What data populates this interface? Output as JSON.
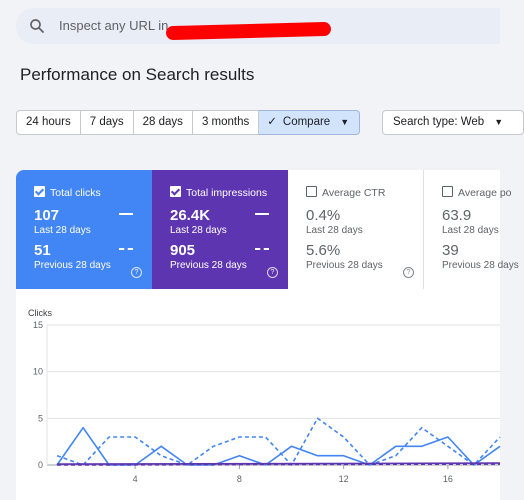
{
  "search": {
    "placeholder": "Inspect any URL in"
  },
  "page_title": "Performance on Search results",
  "date_ranges": [
    "24 hours",
    "7 days",
    "28 days",
    "3 months"
  ],
  "compare_label": "Compare",
  "search_type": "Search type: Web",
  "metrics": [
    {
      "label": "Total clicks",
      "current": "107",
      "current_period": "Last 28 days",
      "previous": "51",
      "previous_period": "Previous 28 days",
      "checked": true,
      "color": "#4285f4"
    },
    {
      "label": "Total impressions",
      "current": "26.4K",
      "current_period": "Last 28 days",
      "previous": "905",
      "previous_period": "Previous 28 days",
      "checked": true,
      "color": "#5e35b1"
    },
    {
      "label": "Average CTR",
      "current": "0.4%",
      "current_period": "Last 28 days",
      "previous": "5.6%",
      "previous_period": "Previous 28 days",
      "checked": false
    },
    {
      "label": "Average po",
      "current": "63.9",
      "current_period": "Last 28 days",
      "previous": "39",
      "previous_period": "Previous 28 days",
      "checked": false
    }
  ],
  "chart_data": {
    "type": "line",
    "ylabel": "Clicks",
    "y_ticks": [
      0,
      5,
      10,
      15
    ],
    "x_ticks": [
      4,
      8,
      12,
      16
    ],
    "ylim": [
      0,
      15
    ],
    "xlim": [
      1,
      18
    ],
    "series": [
      {
        "style": "solid",
        "color": "#4285f4",
        "x": [
          1,
          2,
          3,
          4,
          5,
          6,
          7,
          8,
          9,
          10,
          11,
          12,
          13,
          14,
          15,
          16,
          17,
          18
        ],
        "y": [
          0,
          4,
          0,
          0,
          2,
          0,
          0,
          1,
          0,
          2,
          1,
          1,
          0,
          2,
          2,
          3,
          0,
          2
        ]
      },
      {
        "style": "dashed",
        "color": "#4285f4",
        "x": [
          1,
          2,
          3,
          4,
          5,
          6,
          7,
          8,
          9,
          10,
          11,
          12,
          13,
          14,
          15,
          16,
          17,
          18
        ],
        "y": [
          1,
          0,
          3,
          3,
          1,
          0,
          2,
          3,
          3,
          0,
          5,
          3,
          0,
          1,
          4,
          2,
          0,
          3
        ]
      },
      {
        "style": "solid",
        "color": "#5e35b1",
        "x": [
          1,
          18
        ],
        "y": [
          0.1,
          0.2
        ]
      },
      {
        "style": "dashed",
        "color": "#5e35b1",
        "x": [
          1,
          18
        ],
        "y": [
          0,
          0.1
        ]
      }
    ]
  }
}
